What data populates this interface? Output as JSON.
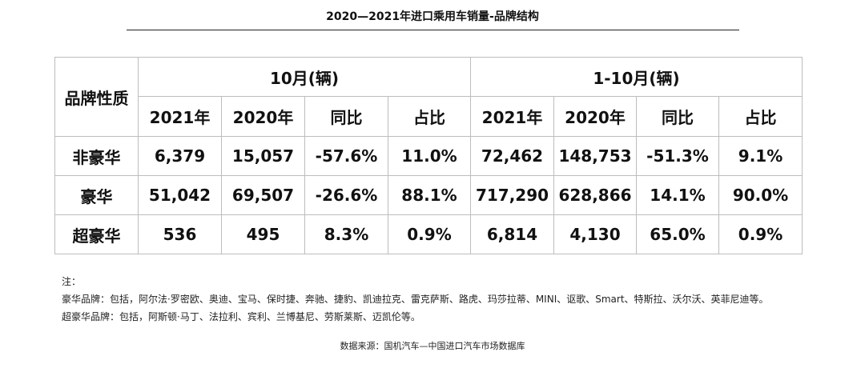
{
  "title": "2020—2021年进口乘用车销量-品牌结构",
  "table": {
    "brand_header": "品牌性质",
    "group_october": "10月(辆)",
    "group_ytd": "1-10月(辆)",
    "sub_headers": [
      "2021年",
      "2020年",
      "同比",
      "占比",
      "2021年",
      "2020年",
      "同比",
      "占比"
    ],
    "rows": [
      {
        "brand": "非豪华",
        "cells": [
          "6,379",
          "15,057",
          "-57.6%",
          "11.0%",
          "72,462",
          "148,753",
          "-51.3%",
          "9.1%"
        ]
      },
      {
        "brand": "豪华",
        "cells": [
          "51,042",
          "69,507",
          "-26.6%",
          "88.1%",
          "717,290",
          "628,866",
          "14.1%",
          "90.0%"
        ]
      },
      {
        "brand": "超豪华",
        "cells": [
          "536",
          "495",
          "8.3%",
          "0.9%",
          "6,814",
          "4,130",
          "65.0%",
          "0.9%"
        ]
      }
    ]
  },
  "notes": {
    "label": "注：",
    "luxury": "豪华品牌：包括，阿尔法·罗密欧、奥迪、宝马、保时捷、奔驰、捷豹、凯迪拉克、雷克萨斯、路虎、玛莎拉蒂、MINI、讴歌、Smart、特斯拉、沃尔沃、英菲尼迪等。",
    "ultra_luxury": "超豪华品牌：包括，阿斯顿·马丁、法拉利、宾利、兰博基尼、劳斯莱斯、迈凯伦等。"
  },
  "source": "数据来源：国机汽车—中国进口汽车市场数据库"
}
